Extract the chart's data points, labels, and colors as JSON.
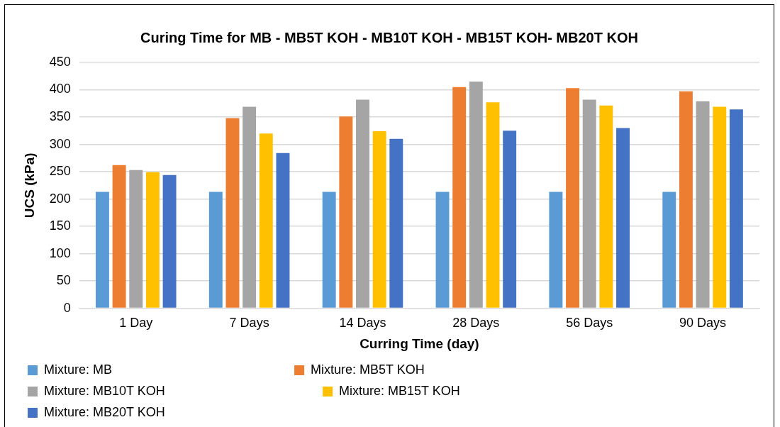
{
  "chart_data": {
    "type": "bar",
    "title": "Curing Time for MB - MB5T KOH - MB10T KOH - MB15T KOH- MB20T KOH",
    "xlabel": "Curring Time (day)",
    "ylabel": "UCS (kPa)",
    "categories": [
      "1 Day",
      "7 Days",
      "14 Days",
      "28 Days",
      "56 Days",
      "90 Days"
    ],
    "series": [
      {
        "name": "Mixture: MB",
        "color": "#5b9bd5",
        "values": [
          213,
          213,
          213,
          213,
          213,
          213
        ]
      },
      {
        "name": "Mixture: MB5T KOH",
        "color": "#ed7d31",
        "values": [
          262,
          348,
          351,
          405,
          403,
          397
        ]
      },
      {
        "name": "Mixture: MB10T KOH",
        "color": "#a5a5a5",
        "values": [
          253,
          369,
          382,
          415,
          382,
          379
        ]
      },
      {
        "name": "Mixture: MB15T KOH",
        "color": "#ffc000",
        "values": [
          249,
          320,
          324,
          377,
          371,
          369
        ]
      },
      {
        "name": "Mixture: MB20T KOH",
        "color": "#4472c4",
        "values": [
          244,
          284,
          310,
          325,
          330,
          364
        ]
      }
    ],
    "ylim": [
      0,
      450
    ],
    "yticks": [
      0,
      50,
      100,
      150,
      200,
      250,
      300,
      350,
      400,
      450
    ],
    "grid": "y",
    "legend": "bottom"
  }
}
